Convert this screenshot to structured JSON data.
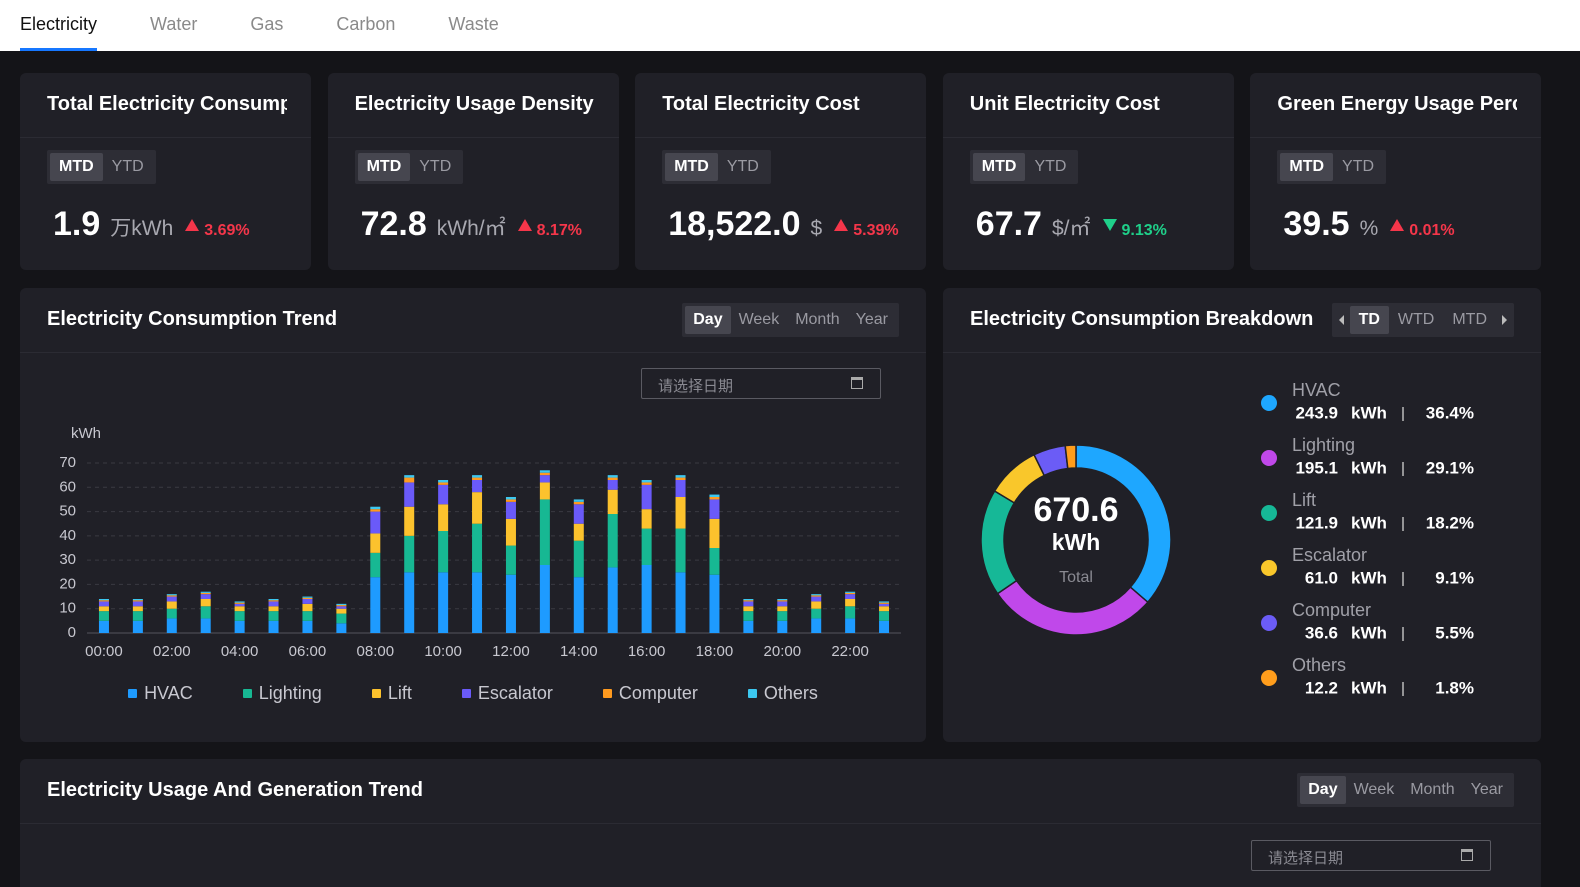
{
  "tabs": {
    "items": [
      "Electricity",
      "Water",
      "Gas",
      "Carbon",
      "Waste"
    ],
    "active": 0
  },
  "kpis": [
    {
      "title": "Total Electricity Consump",
      "periods": [
        "MTD",
        "YTD"
      ],
      "active_period": 0,
      "value": "1.9",
      "unit": "万kWh",
      "change": "3.69%",
      "direction": "up"
    },
    {
      "title": "Electricity Usage Density",
      "periods": [
        "MTD",
        "YTD"
      ],
      "active_period": 0,
      "value": "72.8",
      "unit": "kWh/㎡",
      "change": "8.17%",
      "direction": "up"
    },
    {
      "title": "Total Electricity Cost",
      "periods": [
        "MTD",
        "YTD"
      ],
      "active_period": 0,
      "value": "18,522.0",
      "unit": "$",
      "change": "5.39%",
      "direction": "up"
    },
    {
      "title": "Unit Electricity Cost",
      "periods": [
        "MTD",
        "YTD"
      ],
      "active_period": 0,
      "value": "67.7",
      "unit": "$/㎡",
      "change": "9.13%",
      "direction": "down"
    },
    {
      "title": "Green Energy Usage Perc",
      "periods": [
        "MTD",
        "YTD"
      ],
      "active_period": 0,
      "value": "39.5",
      "unit": "%",
      "change": "0.01%",
      "direction": "up"
    }
  ],
  "chart_data": [
    {
      "type": "bar",
      "stacked": true,
      "title": "Electricity Consumption Trend",
      "periods": [
        "Day",
        "Week",
        "Month",
        "Year"
      ],
      "active_period": 0,
      "date_placeholder": "请选择日期",
      "y_label": "kWh",
      "categories": [
        "00:00",
        null,
        "02:00",
        null,
        "04:00",
        null,
        "06:00",
        null,
        "08:00",
        null,
        "10:00",
        null,
        "12:00",
        null,
        "14:00",
        null,
        "16:00",
        null,
        "18:00",
        null,
        "20:00",
        null,
        "22:00",
        null
      ],
      "series": [
        {
          "name": "HVAC",
          "color": "#1e9bff",
          "values": [
            5,
            5,
            6,
            6,
            5,
            5,
            5,
            4,
            23,
            25,
            25,
            25,
            24,
            28,
            23,
            27,
            28,
            25,
            24,
            5,
            5,
            6,
            6,
            5
          ]
        },
        {
          "name": "Lighting",
          "color": "#17b893",
          "values": [
            4,
            4,
            4,
            5,
            4,
            4,
            4,
            4,
            10,
            15,
            17,
            20,
            12,
            27,
            15,
            22,
            15,
            18,
            11,
            4,
            4,
            4,
            5,
            4
          ]
        },
        {
          "name": "Lift",
          "color": "#fcc22d",
          "values": [
            2,
            2,
            3,
            3,
            2,
            2,
            3,
            2,
            8,
            12,
            11,
            13,
            11,
            7,
            7,
            10,
            8,
            13,
            12,
            2,
            2,
            3,
            3,
            2
          ]
        },
        {
          "name": "Escalator",
          "color": "#6a5af9",
          "values": [
            2,
            2,
            2,
            2,
            1,
            2,
            2,
            1,
            9,
            10,
            8,
            5,
            7,
            3,
            8,
            4,
            10,
            7,
            8,
            2,
            2,
            2,
            2,
            1
          ]
        },
        {
          "name": "Computer",
          "color": "#ff9a1f",
          "values": [
            0.5,
            0.5,
            0.5,
            0.5,
            0.5,
            0.5,
            0.5,
            0.5,
            1,
            2,
            1,
            1,
            1,
            1,
            1,
            1,
            1,
            1,
            1,
            0.5,
            0.5,
            0.5,
            0.5,
            0.5
          ]
        },
        {
          "name": "Others",
          "color": "#3cc8f0",
          "values": [
            0.5,
            0.5,
            0.5,
            0.5,
            0.5,
            0.5,
            0.5,
            0.5,
            1,
            1,
            1,
            1,
            1,
            1,
            1,
            1,
            1,
            1,
            1,
            0.5,
            0.5,
            0.5,
            0.5,
            0.5
          ]
        }
      ],
      "ylim": [
        0,
        70
      ],
      "yticks": [
        0,
        10,
        20,
        30,
        40,
        50,
        60,
        70
      ],
      "grid": true,
      "legend": "bottom"
    },
    {
      "type": "pie",
      "donut": true,
      "title": "Electricity Consumption Breakdown",
      "periods": [
        "TD",
        "WTD",
        "MTD"
      ],
      "active_period": 0,
      "categories": [
        "HVAC",
        "Lighting",
        "Lift",
        "Escalator",
        "Computer",
        "Others"
      ],
      "values": [
        243.9,
        195.1,
        121.9,
        61.0,
        36.6,
        12.2
      ],
      "value_labels": [
        "243.9",
        "195.1",
        "121.9",
        "61.0",
        "36.6",
        "12.2"
      ],
      "unit": "kWh",
      "percent_labels": [
        "36.4%",
        "29.1%",
        "18.2%",
        "9.1%",
        "5.5%",
        "1.8%"
      ],
      "colors": [
        "#1ea7ff",
        "#c048ea",
        "#16b897",
        "#f9c72b",
        "#6b5cf6",
        "#ff9d1c"
      ],
      "total": 670.6,
      "total_unit": "kWh",
      "total_caption": "Total",
      "legend": "right"
    }
  ],
  "generation_panel": {
    "title": "Electricity Usage And Generation Trend",
    "periods": [
      "Day",
      "Week",
      "Month",
      "Year"
    ],
    "active_period": 0,
    "date_placeholder": "请选择日期"
  }
}
